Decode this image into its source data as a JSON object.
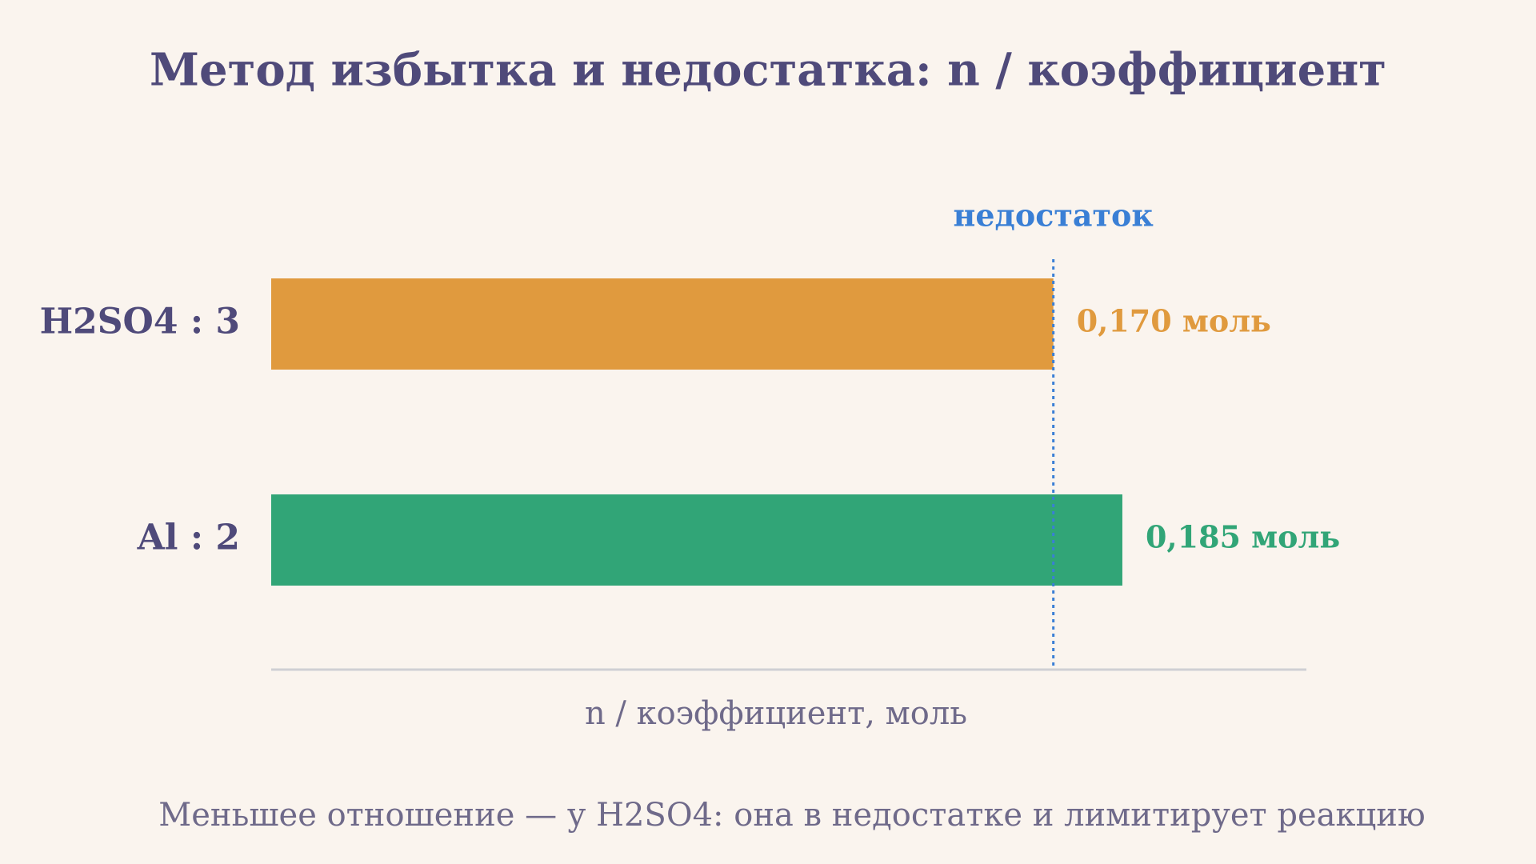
{
  "chart_data": {
    "type": "hbar",
    "title": "Метод избытка и недостатка: n / коэффициент",
    "categories": [
      "H2SO4 : 3",
      "Al : 2"
    ],
    "values": [
      0.17,
      0.185
    ],
    "value_labels": [
      "0,170 моль",
      "0,185 моль"
    ],
    "colors": [
      "#e09a3e",
      "#31a577"
    ],
    "xlim": [
      0,
      0.225
    ],
    "x_label": "n / коэффициент, моль",
    "reference": {
      "value": 0.17,
      "label": "недостаток",
      "color": "#3a7fd5"
    },
    "note": "Меньшее отношение — у H2SO4: она в недостатке и лимитирует реакцию"
  }
}
